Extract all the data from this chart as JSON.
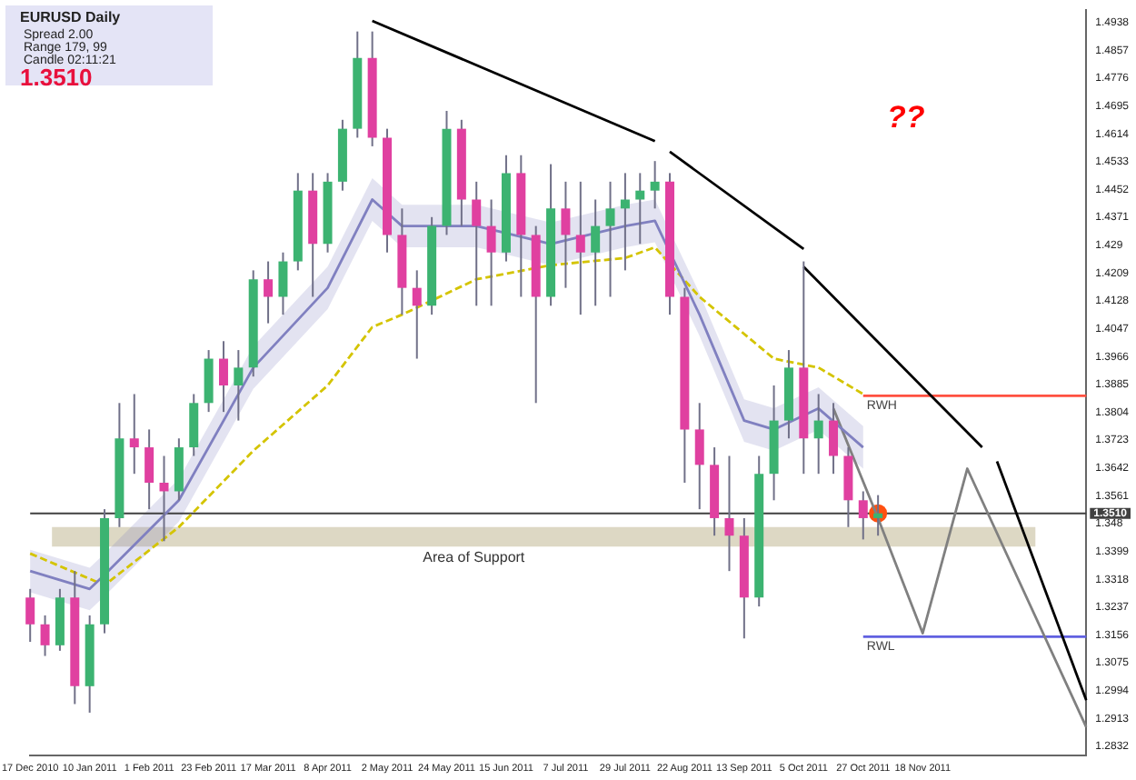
{
  "chart_data": {
    "type": "candlestick",
    "title": "EURUSD  Daily",
    "annotations": [
      "Spread  2.00",
      "Range  179, 99",
      "Candle  02:11:21",
      "1.3510",
      "??"
    ],
    "categories": [
      "17 Dec 2010",
      null,
      null,
      null,
      "10 Jan 2011",
      null,
      null,
      null,
      "1 Feb 2011",
      null,
      null,
      null,
      "23 Feb 2011",
      null,
      null,
      null,
      "17 Mar 2011",
      null,
      null,
      null,
      "8 Apr 2011",
      null,
      null,
      null,
      "2 May 2011",
      null,
      null,
      null,
      "24 May 2011",
      null,
      null,
      null,
      "15 Jun 2011",
      null,
      null,
      null,
      "7 Jul 2011",
      null,
      null,
      null,
      "29 Jul 2011",
      null,
      null,
      null,
      "22 Aug 2011",
      null,
      null,
      null,
      "13 Sep 2011",
      null,
      null,
      null,
      "5 Oct 2011",
      null,
      null,
      null,
      "27 Oct 2011",
      null,
      null,
      null,
      "18 Nov 2011",
      null,
      null,
      null,
      null,
      null,
      null,
      null,
      null,
      null,
      null,
      null
    ],
    "ohlc": [
      [
        1.3265,
        1.329,
        1.3136,
        1.3187
      ],
      [
        1.3187,
        1.3213,
        1.3095,
        1.3126
      ],
      [
        1.3126,
        1.329,
        1.311,
        1.3265
      ],
      [
        1.3265,
        1.3342,
        1.2955,
        1.3007
      ],
      [
        1.3007,
        1.3213,
        1.293,
        1.3187
      ],
      [
        1.3187,
        1.3522,
        1.3161,
        1.3496
      ],
      [
        1.3496,
        1.3831,
        1.347,
        1.3728
      ],
      [
        1.3728,
        1.3857,
        1.3625,
        1.3702
      ],
      [
        1.3702,
        1.3754,
        1.3522,
        1.3599
      ],
      [
        1.3599,
        1.3677,
        1.3429,
        1.3574
      ],
      [
        1.3574,
        1.3728,
        1.3548,
        1.3702
      ],
      [
        1.3702,
        1.3857,
        1.3677,
        1.3831
      ],
      [
        1.3831,
        1.3985,
        1.3805,
        1.396
      ],
      [
        1.396,
        1.4011,
        1.3805,
        1.3882
      ],
      [
        1.3882,
        1.3985,
        1.378,
        1.3934
      ],
      [
        1.3934,
        1.4217,
        1.3908,
        1.4191
      ],
      [
        1.4191,
        1.4243,
        1.4063,
        1.414
      ],
      [
        1.414,
        1.4269,
        1.4088,
        1.4243
      ],
      [
        1.4243,
        1.45,
        1.4217,
        1.4449
      ],
      [
        1.4449,
        1.45,
        1.414,
        1.4294
      ],
      [
        1.4294,
        1.45,
        1.4269,
        1.4475
      ],
      [
        1.4475,
        1.4655,
        1.4449,
        1.4629
      ],
      [
        1.4629,
        1.4912,
        1.4603,
        1.4835
      ],
      [
        1.4835,
        1.4912,
        1.4578,
        1.4603
      ],
      [
        1.4603,
        1.4629,
        1.4269,
        1.432
      ],
      [
        1.432,
        1.4397,
        1.4088,
        1.4166
      ],
      [
        1.4166,
        1.4217,
        1.396,
        1.4114
      ],
      [
        1.4114,
        1.4372,
        1.4088,
        1.4346
      ],
      [
        1.4346,
        1.4681,
        1.432,
        1.4629
      ],
      [
        1.4629,
        1.4655,
        1.4346,
        1.4423
      ],
      [
        1.4423,
        1.4475,
        1.4114,
        1.4346
      ],
      [
        1.4346,
        1.4423,
        1.4114,
        1.4269
      ],
      [
        1.4269,
        1.4552,
        1.4243,
        1.45
      ],
      [
        1.45,
        1.4552,
        1.414,
        1.432
      ],
      [
        1.432,
        1.4346,
        1.3831,
        1.414
      ],
      [
        1.414,
        1.4526,
        1.4114,
        1.4397
      ],
      [
        1.4397,
        1.4475,
        1.4166,
        1.432
      ],
      [
        1.432,
        1.4475,
        1.4088,
        1.4269
      ],
      [
        1.4269,
        1.4423,
        1.4114,
        1.4346
      ],
      [
        1.4346,
        1.4475,
        1.414,
        1.4397
      ],
      [
        1.4397,
        1.45,
        1.4217,
        1.4423
      ],
      [
        1.4423,
        1.45,
        1.4294,
        1.4449
      ],
      [
        1.4449,
        1.4535,
        1.4397,
        1.4475
      ],
      [
        1.4475,
        1.45,
        1.4088,
        1.414
      ],
      [
        1.414,
        1.4166,
        1.3599,
        1.3754
      ],
      [
        1.3754,
        1.3831,
        1.3522,
        1.3651
      ],
      [
        1.3651,
        1.3702,
        1.3445,
        1.3496
      ],
      [
        1.3496,
        1.3677,
        1.3342,
        1.3445
      ],
      [
        1.3445,
        1.3496,
        1.3146,
        1.3265
      ],
      [
        1.3265,
        1.3677,
        1.3239,
        1.3625
      ],
      [
        1.3625,
        1.3882,
        1.3548,
        1.378
      ],
      [
        1.378,
        1.3985,
        1.3728,
        1.3934
      ],
      [
        1.3934,
        1.4243,
        1.3625,
        1.3728
      ],
      [
        1.3728,
        1.3857,
        1.3625,
        1.378
      ],
      [
        1.378,
        1.3831,
        1.3625,
        1.3677
      ],
      [
        1.3677,
        1.3702,
        1.347,
        1.3548
      ],
      [
        1.3548,
        1.3574,
        1.3434,
        1.3496
      ],
      [
        1.3496,
        1.3563,
        1.3445,
        1.351
      ],
      null,
      null,
      null,
      null,
      null,
      null,
      null,
      null,
      null,
      null,
      null,
      null,
      null,
      null
    ],
    "series": [
      {
        "type": "line",
        "color": "#8080c0",
        "values": [
          1.3342,
          null,
          null,
          null,
          1.329,
          1.3331,
          null,
          null,
          null,
          null,
          1.3548,
          null,
          null,
          null,
          null,
          1.3934,
          null,
          null,
          null,
          null,
          1.4166,
          null,
          null,
          1.4423,
          null,
          1.4346,
          null,
          null,
          1.4346,
          null,
          1.4346,
          null,
          null,
          null,
          null,
          1.4294,
          null,
          null,
          null,
          null,
          1.4346,
          null,
          1.4361,
          null,
          null,
          1.4088,
          null,
          null,
          1.378,
          null,
          1.3754,
          null,
          null,
          1.3815,
          null,
          null,
          1.3702,
          null,
          null,
          null,
          null,
          null,
          null,
          null,
          null,
          null,
          null,
          null,
          null,
          null,
          null,
          null
        ],
        "lower": [
          1.328,
          null,
          null,
          null,
          1.3228,
          1.3269,
          null,
          null,
          null,
          null,
          1.3486,
          null,
          null,
          null,
          null,
          1.3872,
          null,
          null,
          null,
          null,
          1.4104,
          null,
          null,
          1.4361,
          null,
          1.4284,
          null,
          null,
          1.4284,
          null,
          1.4284,
          null,
          null,
          null,
          null,
          1.4232,
          null,
          null,
          null,
          null,
          1.4284,
          null,
          1.4299,
          null,
          null,
          1.4026,
          null,
          null,
          1.3718,
          null,
          1.3692,
          null,
          null,
          1.3753,
          null,
          null,
          1.364,
          null,
          null,
          null,
          null,
          null,
          null,
          null,
          null,
          null,
          null,
          null,
          null,
          null,
          null,
          null
        ],
        "upper": [
          1.3404,
          null,
          null,
          null,
          1.3352,
          1.3393,
          null,
          null,
          null,
          null,
          1.361,
          null,
          null,
          null,
          null,
          1.3996,
          null,
          null,
          null,
          null,
          1.4228,
          null,
          null,
          1.4485,
          null,
          1.4408,
          null,
          null,
          1.4408,
          null,
          1.4408,
          null,
          null,
          null,
          null,
          1.4356,
          null,
          null,
          null,
          null,
          1.4408,
          null,
          1.4423,
          null,
          null,
          1.415,
          null,
          null,
          1.3842,
          null,
          1.3816,
          null,
          null,
          1.3877,
          null,
          null,
          1.3764,
          null,
          null,
          null,
          null,
          null,
          null,
          null,
          null,
          null,
          null,
          null,
          null,
          null,
          null,
          null
        ]
      },
      {
        "type": "line",
        "color": "#d4c400",
        "line_style": "dashed",
        "values": [
          1.3393,
          null,
          null,
          null,
          null,
          1.3301,
          null,
          null,
          null,
          null,
          1.347,
          null,
          null,
          null,
          null,
          1.3692,
          null,
          null,
          null,
          null,
          1.3882,
          null,
          null,
          1.4052,
          null,
          1.4088,
          null,
          null,
          null,
          null,
          1.4191,
          null,
          null,
          null,
          null,
          1.4232,
          null,
          null,
          null,
          null,
          1.4253,
          null,
          1.4284,
          null,
          null,
          1.414,
          null,
          null,
          null,
          null,
          1.396,
          null,
          null,
          1.3934,
          null,
          null,
          1.3857,
          null,
          null,
          null,
          null,
          null,
          null,
          null,
          null,
          null,
          null,
          null,
          null,
          null,
          null,
          null
        ]
      },
      {
        "type": "line",
        "color": "#000000",
        "values": [
          null,
          null,
          null,
          null,
          null,
          null,
          null,
          null,
          null,
          null,
          null,
          null,
          null,
          null,
          null,
          null,
          null,
          null,
          null,
          null,
          null,
          null,
          null,
          1.4943,
          null,
          null,
          null,
          null,
          null,
          null,
          null,
          null,
          null,
          null,
          null,
          null,
          null,
          null,
          null,
          null,
          null,
          null,
          1.4593,
          null,
          null,
          null,
          null,
          null,
          null,
          null,
          null,
          null,
          null,
          null,
          null,
          null,
          null,
          null,
          null,
          null,
          null,
          null,
          null,
          null,
          null,
          null,
          null,
          null,
          null,
          null,
          null,
          null
        ]
      },
      {
        "type": "line",
        "color": "#000000",
        "values": [
          null,
          null,
          null,
          null,
          null,
          null,
          null,
          null,
          null,
          null,
          null,
          null,
          null,
          null,
          null,
          null,
          null,
          null,
          null,
          null,
          null,
          null,
          null,
          null,
          null,
          null,
          null,
          null,
          null,
          null,
          null,
          null,
          null,
          null,
          null,
          null,
          null,
          null,
          null,
          null,
          null,
          null,
          null,
          1.4562,
          null,
          null,
          null,
          null,
          null,
          null,
          null,
          null,
          1.4279,
          null,
          null,
          null,
          null,
          null,
          null,
          null,
          null,
          null,
          null,
          null,
          null,
          null,
          null,
          null,
          null,
          null,
          null,
          null
        ]
      },
      {
        "type": "line",
        "color": "#000000",
        "values": [
          null,
          null,
          null,
          null,
          null,
          null,
          null,
          null,
          null,
          null,
          null,
          null,
          null,
          null,
          null,
          null,
          null,
          null,
          null,
          null,
          null,
          null,
          null,
          null,
          null,
          null,
          null,
          null,
          null,
          null,
          null,
          null,
          null,
          null,
          null,
          null,
          null,
          null,
          null,
          null,
          null,
          null,
          null,
          null,
          null,
          null,
          null,
          null,
          null,
          null,
          null,
          null,
          1.4227,
          null,
          null,
          null,
          null,
          null,
          null,
          null,
          null,
          null,
          null,
          null,
          1.3702,
          null,
          null,
          null,
          null,
          null,
          null,
          null
        ]
      },
      {
        "type": "line",
        "color": "#000000",
        "values": [
          null,
          null,
          null,
          null,
          null,
          null,
          null,
          null,
          null,
          null,
          null,
          null,
          null,
          null,
          null,
          null,
          null,
          null,
          null,
          null,
          null,
          null,
          null,
          null,
          null,
          null,
          null,
          null,
          null,
          null,
          null,
          null,
          null,
          null,
          null,
          null,
          null,
          null,
          null,
          null,
          null,
          null,
          null,
          null,
          null,
          null,
          null,
          null,
          null,
          null,
          null,
          null,
          null,
          null,
          null,
          null,
          null,
          null,
          null,
          null,
          null,
          null,
          null,
          null,
          null,
          1.3661,
          null,
          null,
          null,
          null,
          null,
          1.2966
        ]
      },
      {
        "type": "line",
        "color": "#808080",
        "values": [
          null,
          null,
          null,
          null,
          null,
          null,
          null,
          null,
          null,
          null,
          null,
          null,
          null,
          null,
          null,
          null,
          null,
          null,
          null,
          null,
          null,
          null,
          null,
          null,
          null,
          null,
          null,
          null,
          null,
          null,
          null,
          null,
          null,
          null,
          null,
          null,
          null,
          null,
          null,
          null,
          null,
          null,
          null,
          null,
          null,
          null,
          null,
          null,
          null,
          null,
          null,
          null,
          null,
          null,
          1.3815,
          null,
          null,
          1.3496,
          null,
          null,
          1.3161,
          null,
          null,
          1.364,
          null,
          null,
          null,
          null,
          null,
          null,
          null,
          1.2888
        ]
      },
      {
        "type": "line",
        "name": "RWH",
        "color": "#ff5040",
        "values": [
          null,
          null,
          null,
          null,
          null,
          null,
          null,
          null,
          null,
          null,
          null,
          null,
          null,
          null,
          null,
          null,
          null,
          null,
          null,
          null,
          null,
          null,
          null,
          null,
          null,
          null,
          null,
          null,
          null,
          null,
          null,
          null,
          null,
          null,
          null,
          null,
          null,
          null,
          null,
          null,
          null,
          null,
          null,
          null,
          null,
          null,
          null,
          null,
          null,
          null,
          null,
          null,
          null,
          null,
          null,
          null,
          1.3852,
          null,
          null,
          null,
          null,
          null,
          null,
          null,
          null,
          null,
          null,
          null,
          null,
          null,
          null,
          1.3852
        ]
      },
      {
        "type": "line",
        "name": "RWL",
        "color": "#6060e0",
        "values": [
          null,
          null,
          null,
          null,
          null,
          null,
          null,
          null,
          null,
          null,
          null,
          null,
          null,
          null,
          null,
          null,
          null,
          null,
          null,
          null,
          null,
          null,
          null,
          null,
          null,
          null,
          null,
          null,
          null,
          null,
          null,
          null,
          null,
          null,
          null,
          null,
          null,
          null,
          null,
          null,
          null,
          null,
          null,
          null,
          null,
          null,
          null,
          null,
          null,
          null,
          null,
          null,
          null,
          null,
          null,
          null,
          1.3151,
          null,
          null,
          null,
          null,
          null,
          null,
          null,
          null,
          null,
          null,
          null,
          null,
          null,
          null,
          1.3151
        ]
      },
      {
        "type": "scatter",
        "color": "#ff5010",
        "marker": "circle",
        "values": [
          null,
          null,
          null,
          null,
          null,
          null,
          null,
          null,
          null,
          null,
          null,
          null,
          null,
          null,
          null,
          null,
          null,
          null,
          null,
          null,
          null,
          null,
          null,
          null,
          null,
          null,
          null,
          null,
          null,
          null,
          null,
          null,
          null,
          null,
          null,
          null,
          null,
          null,
          null,
          null,
          null,
          null,
          null,
          null,
          null,
          null,
          null,
          null,
          null,
          null,
          null,
          null,
          null,
          null,
          null,
          null,
          null,
          1.351,
          null,
          null,
          null,
          null,
          null,
          null,
          null,
          null,
          null,
          null,
          null,
          null,
          null,
          null
        ]
      }
    ],
    "ref_lines": [
      {
        "axis": "y",
        "value": 1.351,
        "label": "1.3510",
        "color": "#404040"
      }
    ],
    "bands": [
      {
        "axis": "y",
        "from": 1.3413,
        "to": 1.347,
        "label": "Area of Support",
        "color": "#ddd8c4"
      }
    ],
    "ylim": [
      1.2806,
      1.4974
    ],
    "yticks": [
      1.4938,
      1.4857,
      1.4776,
      1.4695,
      1.4614,
      1.4533,
      1.4452,
      1.4371,
      1.429,
      1.4209,
      1.4128,
      1.4047,
      1.3966,
      1.3885,
      1.3804,
      1.3723,
      1.3642,
      1.3561,
      1.348,
      1.3399,
      1.3318,
      1.3237,
      1.3156,
      1.3075,
      1.2994,
      1.2913,
      1.2832
    ]
  }
}
